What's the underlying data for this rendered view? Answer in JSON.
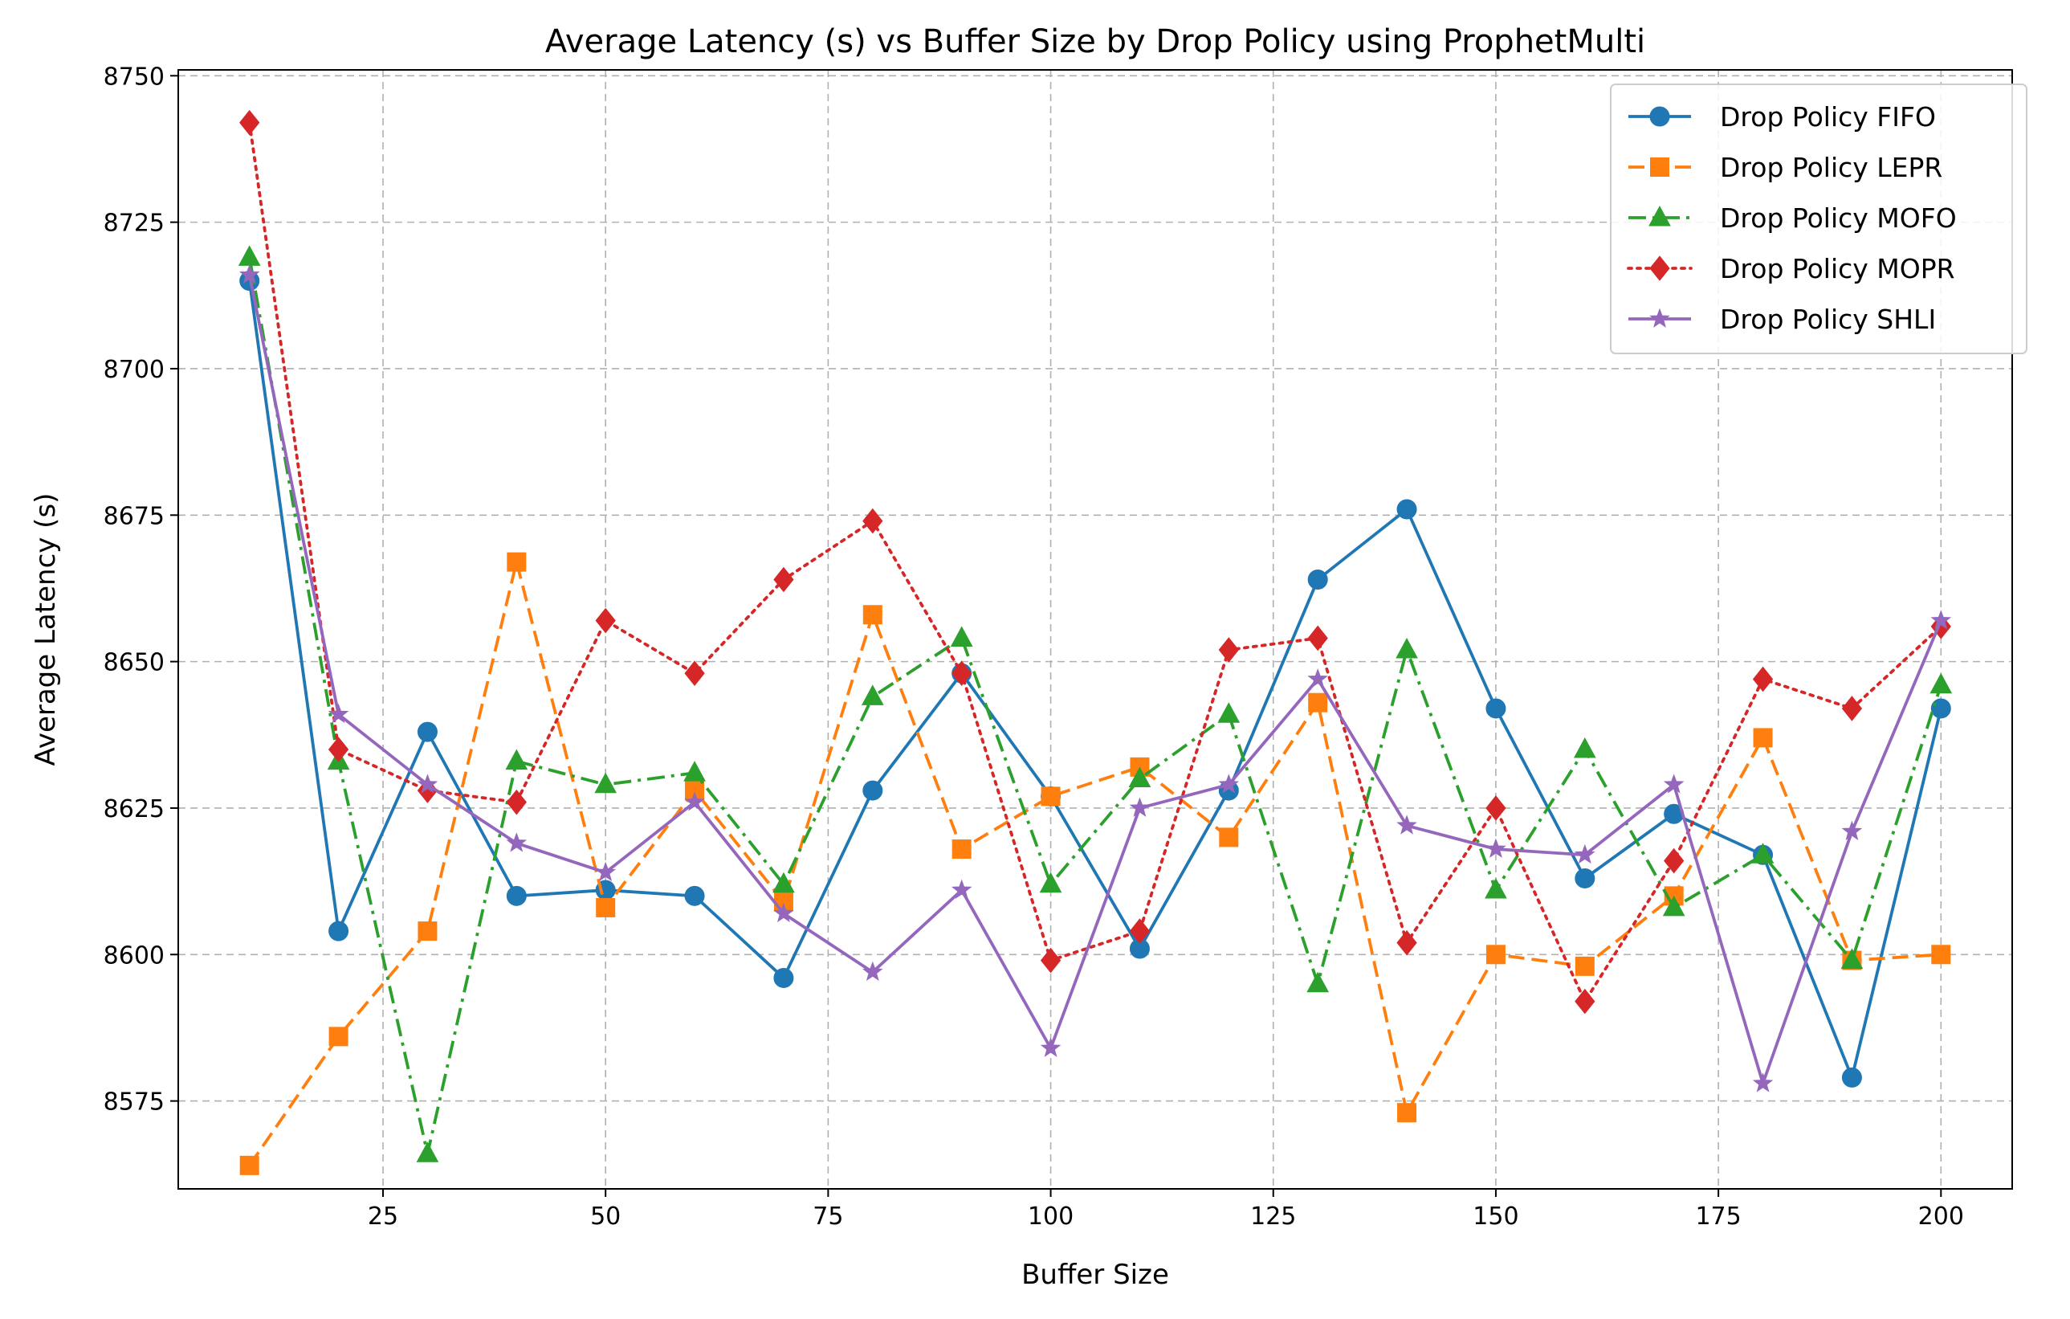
{
  "chart_data": {
    "type": "line",
    "title": "Average Latency (s) vs Buffer Size by Drop Policy using ProphetMulti",
    "xlabel": "Buffer Size",
    "ylabel": "Average Latency (s)",
    "xlim": [
      2,
      208
    ],
    "ylim": [
      8560,
      8751
    ],
    "x_ticks": [
      25,
      50,
      75,
      100,
      125,
      150,
      175,
      200
    ],
    "y_ticks": [
      8575,
      8600,
      8625,
      8650,
      8675,
      8700,
      8725,
      8750
    ],
    "grid": true,
    "legend_position": "top-right",
    "x": [
      10,
      20,
      30,
      40,
      50,
      60,
      70,
      80,
      90,
      100,
      110,
      120,
      130,
      140,
      150,
      160,
      170,
      180,
      190,
      200
    ],
    "series": [
      {
        "name": "Drop Policy FIFO",
        "color": "#1f77b4",
        "marker": "circle",
        "linestyle": "solid",
        "values": [
          8715,
          8604,
          8638,
          8610,
          8611,
          8610,
          8596,
          8628,
          8648,
          8627,
          8601,
          8628,
          8664,
          8676,
          8642,
          8613,
          8624,
          8617,
          8579,
          8642
        ]
      },
      {
        "name": "Drop Policy LEPR",
        "color": "#ff7f0e",
        "marker": "square",
        "linestyle": "dashed",
        "values": [
          8564,
          8586,
          8604,
          8667,
          8608,
          8628,
          8609,
          8658,
          8618,
          8627,
          8632,
          8620,
          8643,
          8573,
          8600,
          8598,
          8610,
          8637,
          8599,
          8600
        ]
      },
      {
        "name": "Drop Policy MOFO",
        "color": "#2ca02c",
        "marker": "triangle",
        "linestyle": "dashdot",
        "values": [
          8719,
          8633,
          8566,
          8633,
          8629,
          8631,
          8612,
          8644,
          8654,
          8612,
          8630,
          8641,
          8595,
          8652,
          8611,
          8635,
          8608,
          8617,
          8599,
          8646
        ]
      },
      {
        "name": "Drop Policy MOPR",
        "color": "#d62728",
        "marker": "diamond",
        "linestyle": "dotted",
        "values": [
          8742,
          8635,
          8628,
          8626,
          8657,
          8648,
          8664,
          8674,
          8648,
          8599,
          8604,
          8652,
          8654,
          8602,
          8625,
          8592,
          8616,
          8647,
          8642,
          8656
        ]
      },
      {
        "name": "Drop Policy SHLI",
        "color": "#9467bd",
        "marker": "star",
        "linestyle": "solid",
        "values": [
          8716,
          8641,
          8629,
          8619,
          8614,
          8626,
          8607,
          8597,
          8611,
          8584,
          8625,
          8629,
          8647,
          8622,
          8618,
          8617,
          8629,
          8578,
          8621,
          8657
        ]
      }
    ]
  }
}
